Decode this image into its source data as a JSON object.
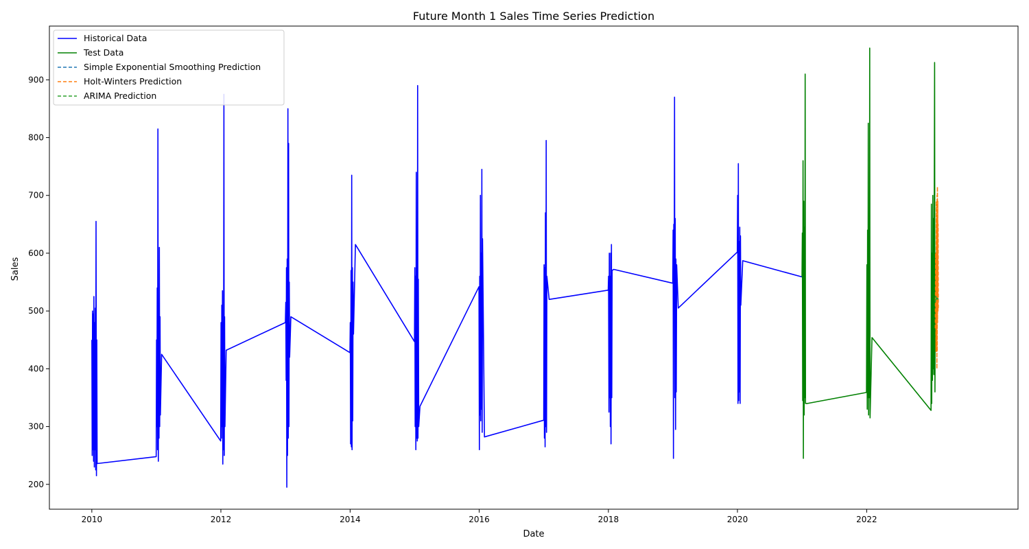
{
  "chart_data": {
    "type": "line",
    "title": "Future Month 1 Sales Time Series Prediction",
    "xlabel": "Date",
    "ylabel": "Sales",
    "xlim": [
      "2009-05-06",
      "2024-05-06"
    ],
    "ylim": [
      157,
      993
    ],
    "x_ticks": [
      "2010",
      "2012",
      "2014",
      "2016",
      "2018",
      "2020",
      "2022"
    ],
    "y_ticks": [
      "200",
      "300",
      "400",
      "500",
      "600",
      "700",
      "800",
      "900"
    ],
    "grid": false,
    "legend_position": "top-left",
    "series": [
      {
        "name": "Historical Data",
        "color": "#0000ff",
        "linestyle": "solid",
        "points": [
          [
            "2010-01-01",
            450
          ],
          [
            "2010-01-03",
            250
          ],
          [
            "2010-01-05",
            500
          ],
          [
            "2010-01-07",
            260
          ],
          [
            "2010-01-09",
            495
          ],
          [
            "2010-01-11",
            240
          ],
          [
            "2010-01-13",
            525
          ],
          [
            "2010-01-15",
            230
          ],
          [
            "2010-01-17",
            480
          ],
          [
            "2010-01-19",
            260
          ],
          [
            "2010-01-21",
            505
          ],
          [
            "2010-01-23",
            225
          ],
          [
            "2010-01-25",
            655
          ],
          [
            "2010-01-27",
            215
          ],
          [
            "2010-01-29",
            450
          ],
          [
            "2010-01-31",
            236
          ],
          [
            "2010-12-31",
            248
          ],
          [
            "2011-01-02",
            450
          ],
          [
            "2011-01-04",
            300
          ],
          [
            "2011-01-06",
            540
          ],
          [
            "2011-01-08",
            260
          ],
          [
            "2011-01-10",
            815
          ],
          [
            "2011-01-12",
            240
          ],
          [
            "2011-01-14",
            470
          ],
          [
            "2011-01-16",
            280
          ],
          [
            "2011-01-18",
            610
          ],
          [
            "2011-01-20",
            300
          ],
          [
            "2011-01-22",
            490
          ],
          [
            "2011-01-24",
            320
          ],
          [
            "2011-01-31",
            425
          ],
          [
            "2011-12-31",
            275
          ],
          [
            "2012-01-02",
            480
          ],
          [
            "2012-01-04",
            280
          ],
          [
            "2012-01-06",
            510
          ],
          [
            "2012-01-08",
            300
          ],
          [
            "2012-01-10",
            535
          ],
          [
            "2012-01-12",
            235
          ],
          [
            "2012-01-14",
            480
          ],
          [
            "2012-01-16",
            260
          ],
          [
            "2012-01-18",
            875
          ],
          [
            "2012-01-20",
            250
          ],
          [
            "2012-01-22",
            490
          ],
          [
            "2012-01-24",
            300
          ],
          [
            "2012-01-31",
            432
          ],
          [
            "2012-12-31",
            480
          ],
          [
            "2013-01-02",
            515
          ],
          [
            "2013-01-04",
            380
          ],
          [
            "2013-01-06",
            575
          ],
          [
            "2013-01-08",
            195
          ],
          [
            "2013-01-10",
            590
          ],
          [
            "2013-01-12",
            250
          ],
          [
            "2013-01-14",
            850
          ],
          [
            "2013-01-16",
            280
          ],
          [
            "2013-01-18",
            790
          ],
          [
            "2013-01-20",
            300
          ],
          [
            "2013-01-22",
            550
          ],
          [
            "2013-01-24",
            420
          ],
          [
            "2013-01-31",
            490
          ],
          [
            "2013-12-31",
            428
          ],
          [
            "2014-01-02",
            480
          ],
          [
            "2014-01-04",
            270
          ],
          [
            "2014-01-06",
            570
          ],
          [
            "2014-01-08",
            265
          ],
          [
            "2014-01-10",
            735
          ],
          [
            "2014-01-12",
            260
          ],
          [
            "2014-01-14",
            575
          ],
          [
            "2014-01-16",
            310
          ],
          [
            "2014-01-18",
            550
          ],
          [
            "2014-01-20",
            460
          ],
          [
            "2014-01-31",
            615
          ],
          [
            "2014-12-31",
            447
          ],
          [
            "2015-01-02",
            575
          ],
          [
            "2015-01-04",
            300
          ],
          [
            "2015-01-06",
            560
          ],
          [
            "2015-01-08",
            260
          ],
          [
            "2015-01-10",
            740
          ],
          [
            "2015-01-12",
            280
          ],
          [
            "2015-01-14",
            560
          ],
          [
            "2015-01-16",
            275
          ],
          [
            "2015-01-18",
            890
          ],
          [
            "2015-01-20",
            280
          ],
          [
            "2015-01-22",
            555
          ],
          [
            "2015-01-24",
            300
          ],
          [
            "2015-01-31",
            335
          ],
          [
            "2015-12-31",
            542
          ],
          [
            "2016-01-02",
            260
          ],
          [
            "2016-01-04",
            560
          ],
          [
            "2016-01-06",
            320
          ],
          [
            "2016-01-08",
            700
          ],
          [
            "2016-01-10",
            310
          ],
          [
            "2016-01-12",
            600
          ],
          [
            "2016-01-14",
            330
          ],
          [
            "2016-01-16",
            745
          ],
          [
            "2016-01-18",
            290
          ],
          [
            "2016-01-20",
            625
          ],
          [
            "2016-01-31",
            282
          ],
          [
            "2016-12-31",
            311
          ],
          [
            "2017-01-02",
            580
          ],
          [
            "2017-01-04",
            280
          ],
          [
            "2017-01-06",
            575
          ],
          [
            "2017-01-08",
            265
          ],
          [
            "2017-01-10",
            670
          ],
          [
            "2017-01-12",
            300
          ],
          [
            "2017-01-14",
            795
          ],
          [
            "2017-01-16",
            290
          ],
          [
            "2017-01-18",
            560
          ],
          [
            "2017-01-31",
            520
          ],
          [
            "2017-12-31",
            536
          ],
          [
            "2018-01-02",
            560
          ],
          [
            "2018-01-04",
            325
          ],
          [
            "2018-01-06",
            600
          ],
          [
            "2018-01-08",
            350
          ],
          [
            "2018-01-10",
            560
          ],
          [
            "2018-01-12",
            300
          ],
          [
            "2018-01-14",
            600
          ],
          [
            "2018-01-16",
            270
          ],
          [
            "2018-01-18",
            615
          ],
          [
            "2018-01-20",
            350
          ],
          [
            "2018-01-22",
            570
          ],
          [
            "2018-01-31",
            572
          ],
          [
            "2018-12-31",
            548
          ],
          [
            "2019-01-02",
            640
          ],
          [
            "2019-01-04",
            245
          ],
          [
            "2019-01-06",
            650
          ],
          [
            "2019-01-08",
            530
          ],
          [
            "2019-01-10",
            870
          ],
          [
            "2019-01-12",
            350
          ],
          [
            "2019-01-14",
            660
          ],
          [
            "2019-01-16",
            295
          ],
          [
            "2019-01-18",
            590
          ],
          [
            "2019-01-20",
            360
          ],
          [
            "2019-01-22",
            580
          ],
          [
            "2019-01-31",
            505
          ],
          [
            "2019-12-31",
            602
          ],
          [
            "2020-01-02",
            700
          ],
          [
            "2020-01-04",
            340
          ],
          [
            "2020-01-06",
            755
          ],
          [
            "2020-01-08",
            345
          ],
          [
            "2020-01-10",
            620
          ],
          [
            "2020-01-12",
            360
          ],
          [
            "2020-01-14",
            645
          ],
          [
            "2020-01-16",
            340
          ],
          [
            "2020-01-18",
            630
          ],
          [
            "2020-01-20",
            510
          ],
          [
            "2020-01-31",
            587
          ],
          [
            "2020-12-31",
            559
          ]
        ]
      },
      {
        "name": "Test Data",
        "color": "#008000",
        "linestyle": "solid",
        "points": [
          [
            "2020-12-31",
            559
          ],
          [
            "2021-01-02",
            635
          ],
          [
            "2021-01-04",
            345
          ],
          [
            "2021-01-06",
            760
          ],
          [
            "2021-01-08",
            245
          ],
          [
            "2021-01-10",
            690
          ],
          [
            "2021-01-12",
            320
          ],
          [
            "2021-01-14",
            645
          ],
          [
            "2021-01-16",
            350
          ],
          [
            "2021-01-18",
            910
          ],
          [
            "2021-01-20",
            340
          ],
          [
            "2021-01-31",
            340
          ],
          [
            "2021-12-31",
            359
          ],
          [
            "2022-01-02",
            580
          ],
          [
            "2022-01-04",
            330
          ],
          [
            "2022-01-06",
            640
          ],
          [
            "2022-01-08",
            350
          ],
          [
            "2022-01-10",
            825
          ],
          [
            "2022-01-12",
            320
          ],
          [
            "2022-01-14",
            640
          ],
          [
            "2022-01-16",
            350
          ],
          [
            "2022-01-18",
            955
          ],
          [
            "2022-01-20",
            315
          ],
          [
            "2022-01-31",
            454
          ],
          [
            "2022-12-31",
            328
          ],
          [
            "2023-01-02",
            685
          ],
          [
            "2023-01-04",
            340
          ],
          [
            "2023-01-06",
            600
          ],
          [
            "2023-01-08",
            380
          ],
          [
            "2023-01-10",
            700
          ],
          [
            "2023-01-12",
            400
          ],
          [
            "2023-01-14",
            660
          ],
          [
            "2023-01-16",
            390
          ],
          [
            "2023-01-18",
            640
          ],
          [
            "2023-01-20",
            930
          ],
          [
            "2023-01-22",
            360
          ],
          [
            "2023-01-24",
            560
          ],
          [
            "2023-01-26",
            450
          ],
          [
            "2023-01-28",
            600
          ],
          [
            "2023-01-30",
            480
          ],
          [
            "2023-02-01",
            540
          ],
          [
            "2023-02-03",
            500
          ],
          [
            "2023-02-05",
            520
          ],
          [
            "2023-02-07",
            515
          ],
          [
            "2023-02-09",
            520
          ]
        ]
      },
      {
        "name": "Simple Exponential Smoothing Prediction",
        "color": "#1f77b4",
        "linestyle": "dashed",
        "points": [
          [
            "2023-01-24",
            520
          ],
          [
            "2023-02-10",
            520
          ]
        ]
      },
      {
        "name": "Holt-Winters Prediction",
        "color": "#ff7f0e",
        "linestyle": "dashed",
        "points": [
          [
            "2023-01-24",
            470
          ],
          [
            "2023-01-26",
            600
          ],
          [
            "2023-01-28",
            430
          ],
          [
            "2023-01-30",
            690
          ],
          [
            "2023-01-31",
            450
          ],
          [
            "2023-02-01",
            660
          ],
          [
            "2023-02-02",
            400
          ],
          [
            "2023-02-03",
            700
          ],
          [
            "2023-02-04",
            430
          ],
          [
            "2023-02-05",
            715
          ],
          [
            "2023-02-06",
            480
          ],
          [
            "2023-02-07",
            690
          ],
          [
            "2023-02-08",
            500
          ],
          [
            "2023-02-09",
            650
          ],
          [
            "2023-02-10",
            505
          ]
        ]
      },
      {
        "name": "ARIMA Prediction",
        "color": "#2ca02c",
        "linestyle": "dashed",
        "points": [
          [
            "2023-01-24",
            515
          ],
          [
            "2023-01-28",
            525
          ],
          [
            "2023-02-01",
            518
          ],
          [
            "2023-02-05",
            522
          ],
          [
            "2023-02-10",
            520
          ]
        ]
      }
    ]
  }
}
